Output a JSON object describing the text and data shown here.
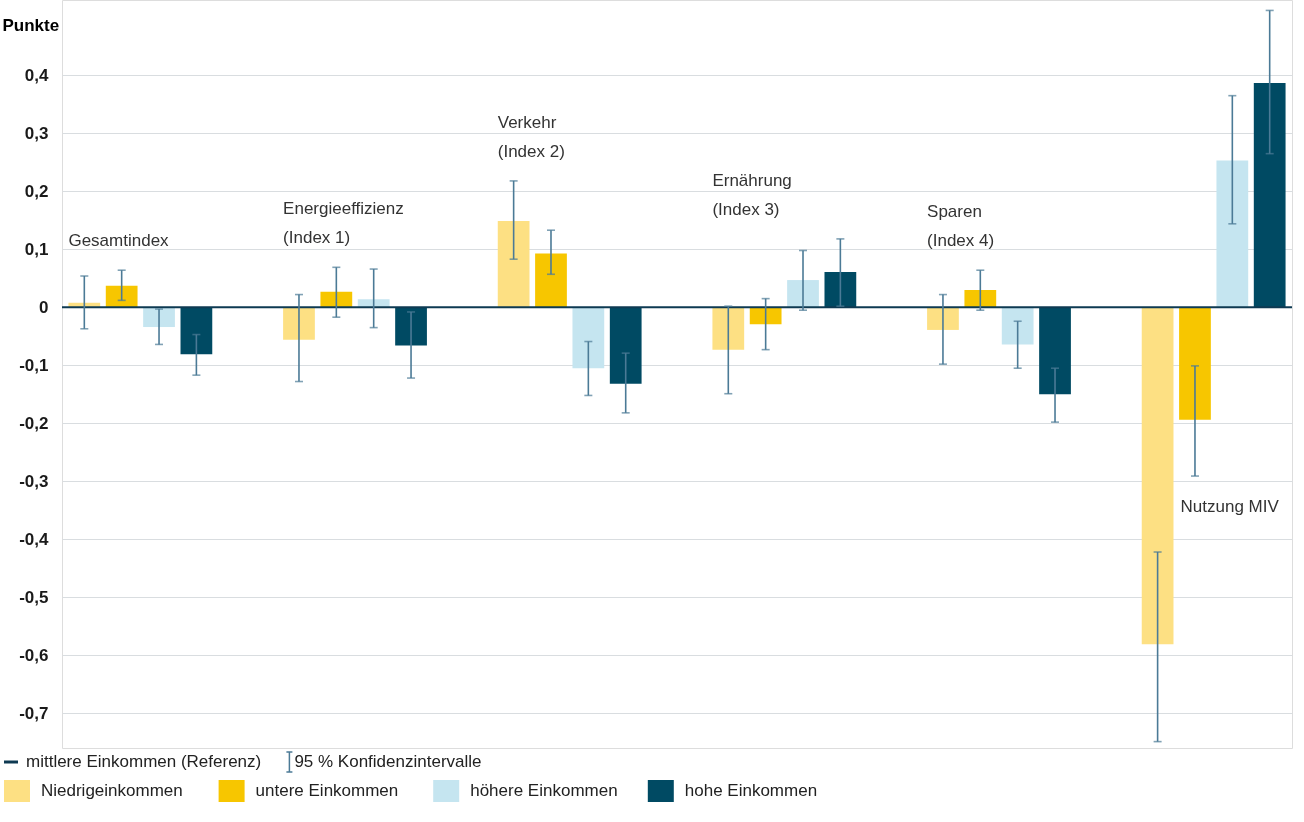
{
  "chart_data": {
    "type": "bar",
    "ylabel": "Punkte",
    "categories": [
      "Gesamtindex",
      "Energieeffizienz (Index 1)",
      "Verkehr (Index 2)",
      "Ernährung (Index 3)",
      "Sparen (Index 4)",
      "Nutzung MIV"
    ],
    "series": [
      {
        "name": "Niedrigeinkommen",
        "color": "#fde083",
        "values": [
          0.008,
          -0.056,
          0.149,
          -0.073,
          -0.039,
          -0.581
        ],
        "errors": [
          [
            -0.037,
            0.054
          ],
          [
            -0.128,
            0.022
          ],
          [
            0.083,
            0.218
          ],
          [
            -0.149,
            0.002
          ],
          [
            -0.098,
            0.022
          ],
          [
            -0.749,
            -0.422
          ]
        ]
      },
      {
        "name": "untere Einkommen",
        "color": "#f7c600",
        "values": [
          0.037,
          0.027,
          0.093,
          -0.029,
          0.03,
          -0.194
        ],
        "errors": [
          [
            0.012,
            0.064
          ],
          [
            -0.017,
            0.069
          ],
          [
            0.057,
            0.133
          ],
          [
            -0.073,
            0.015
          ],
          [
            -0.005,
            0.064
          ],
          [
            -0.291,
            -0.101
          ]
        ]
      },
      {
        "name": "höhere Einkommen",
        "color": "#c5e5f0",
        "values": [
          -0.034,
          0.014,
          -0.105,
          0.047,
          -0.064,
          0.253
        ],
        "errors": [
          [
            -0.064,
            -0.003
          ],
          [
            -0.035,
            0.066
          ],
          [
            -0.152,
            -0.059
          ],
          [
            -0.005,
            0.098
          ],
          [
            -0.105,
            -0.024
          ],
          [
            0.144,
            0.365
          ]
        ]
      },
      {
        "name": "hohe Einkommen",
        "color": "#004a63",
        "values": [
          -0.081,
          -0.066,
          -0.132,
          0.061,
          -0.15,
          0.387
        ],
        "errors": [
          [
            -0.117,
            -0.047
          ],
          [
            -0.122,
            -0.008
          ],
          [
            -0.182,
            -0.079
          ],
          [
            0.002,
            0.118
          ],
          [
            -0.198,
            -0.105
          ],
          [
            0.265,
            0.512
          ]
        ]
      }
    ],
    "ylim": [
      -0.76,
      0.53
    ],
    "yticks": [
      {
        "value": -0.7,
        "label": "-0,7"
      },
      {
        "value": -0.6,
        "label": "-0,6"
      },
      {
        "value": -0.5,
        "label": "-0,5"
      },
      {
        "value": -0.4,
        "label": "-0,4"
      },
      {
        "value": -0.3,
        "label": "-0,3"
      },
      {
        "value": -0.2,
        "label": "-0,2"
      },
      {
        "value": -0.1,
        "label": "-0,1"
      },
      {
        "value": 0,
        "label": "0"
      },
      {
        "value": 0.1,
        "label": "0,1"
      },
      {
        "value": 0.2,
        "label": "0,2"
      },
      {
        "value": 0.3,
        "label": "0,3"
      },
      {
        "value": 0.4,
        "label": "0,4"
      }
    ],
    "ref_lines": [
      {
        "axis": "y",
        "value": 0,
        "label": "mittlere Einkommen (Referenz)",
        "color": "#0e3a52"
      }
    ],
    "annotations": [
      "95 % Konfidenzintervalle"
    ],
    "grid": "y",
    "legend": "bottom",
    "tick_labels": "y"
  }
}
